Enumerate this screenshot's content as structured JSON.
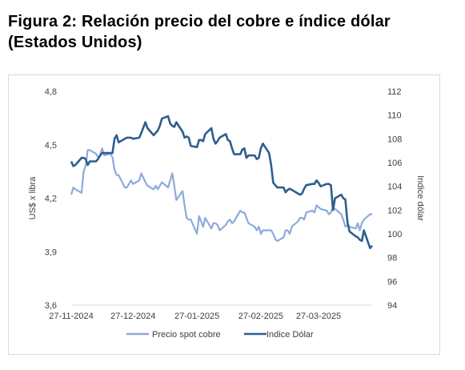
{
  "title": "Figura 2: Relación precio del cobre e índice dólar (Estados Unidos)",
  "chart_data": {
    "type": "line",
    "title": "Figura 2: Relación precio del cobre e índice dólar (Estados Unidos)",
    "x_tick_labels": [
      "27-11-2024",
      "27-12-2024",
      "27-01-2025",
      "27-02-2025",
      "27-03-2025"
    ],
    "x_range": [
      "2024-11-27",
      "2025-04-22"
    ],
    "ylabel_left": "US$ x libra",
    "ylabel_right": "Indice dólar",
    "ylim_left": [
      3.6,
      4.8
    ],
    "ylim_right": [
      94,
      112
    ],
    "yticks_left": [
      "3,6",
      "3,9",
      "4,2",
      "4,5",
      "4,8"
    ],
    "yticks_right": [
      "94",
      "96",
      "98",
      "100",
      "102",
      "104",
      "106",
      "108",
      "110",
      "112"
    ],
    "grid": false,
    "legend_position": "bottom",
    "series": [
      {
        "name": "Precio spot cobre",
        "axis": "left",
        "color": "#8eaadb",
        "points": [
          [
            "2024-11-27",
            4.22
          ],
          [
            "2024-11-28",
            4.26
          ],
          [
            "2024-11-29",
            4.25
          ],
          [
            "2024-12-02",
            4.23
          ],
          [
            "2024-12-03",
            4.35
          ],
          [
            "2024-12-04",
            4.38
          ],
          [
            "2024-12-05",
            4.47
          ],
          [
            "2024-12-06",
            4.47
          ],
          [
            "2024-12-09",
            4.45
          ],
          [
            "2024-12-10",
            4.43
          ],
          [
            "2024-12-11",
            4.44
          ],
          [
            "2024-12-12",
            4.48
          ],
          [
            "2024-12-13",
            4.44
          ],
          [
            "2024-12-16",
            4.45
          ],
          [
            "2024-12-17",
            4.43
          ],
          [
            "2024-12-18",
            4.36
          ],
          [
            "2024-12-19",
            4.33
          ],
          [
            "2024-12-20",
            4.33
          ],
          [
            "2024-12-23",
            4.26
          ],
          [
            "2024-12-24",
            4.26
          ],
          [
            "2024-12-26",
            4.3
          ],
          [
            "2024-12-27",
            4.28
          ],
          [
            "2024-12-30",
            4.3
          ],
          [
            "2024-12-31",
            4.34
          ],
          [
            "2025-01-02",
            4.29
          ],
          [
            "2025-01-03",
            4.27
          ],
          [
            "2025-01-06",
            4.25
          ],
          [
            "2025-01-07",
            4.27
          ],
          [
            "2025-01-08",
            4.25
          ],
          [
            "2025-01-09",
            4.27
          ],
          [
            "2025-01-10",
            4.29
          ],
          [
            "2025-01-13",
            4.26
          ],
          [
            "2025-01-14",
            4.3
          ],
          [
            "2025-01-15",
            4.34
          ],
          [
            "2025-01-16",
            4.27
          ],
          [
            "2025-01-17",
            4.19
          ],
          [
            "2025-01-20",
            4.24
          ],
          [
            "2025-01-21",
            4.16
          ],
          [
            "2025-01-22",
            4.09
          ],
          [
            "2025-01-23",
            4.08
          ],
          [
            "2025-01-24",
            4.08
          ],
          [
            "2025-01-27",
            4.0
          ],
          [
            "2025-01-28",
            4.1
          ],
          [
            "2025-01-29",
            4.07
          ],
          [
            "2025-01-30",
            4.04
          ],
          [
            "2025-01-31",
            4.09
          ],
          [
            "2025-02-03",
            4.03
          ],
          [
            "2025-02-04",
            4.06
          ],
          [
            "2025-02-05",
            4.06
          ],
          [
            "2025-02-06",
            4.05
          ],
          [
            "2025-02-07",
            4.02
          ],
          [
            "2025-02-10",
            4.05
          ],
          [
            "2025-02-11",
            4.07
          ],
          [
            "2025-02-12",
            4.08
          ],
          [
            "2025-02-13",
            4.06
          ],
          [
            "2025-02-14",
            4.07
          ],
          [
            "2025-02-17",
            4.13
          ],
          [
            "2025-02-18",
            4.12
          ],
          [
            "2025-02-19",
            4.12
          ],
          [
            "2025-02-20",
            4.09
          ],
          [
            "2025-02-21",
            4.06
          ],
          [
            "2025-02-24",
            4.04
          ],
          [
            "2025-02-25",
            4.02
          ],
          [
            "2025-02-26",
            4.04
          ],
          [
            "2025-02-27",
            4.0
          ],
          [
            "2025-02-28",
            4.02
          ],
          [
            "2025-03-03",
            4.02
          ],
          [
            "2025-03-04",
            4.02
          ],
          [
            "2025-03-05",
            4.0
          ],
          [
            "2025-03-06",
            3.97
          ],
          [
            "2025-03-07",
            3.96
          ],
          [
            "2025-03-10",
            3.98
          ],
          [
            "2025-03-11",
            4.02
          ],
          [
            "2025-03-12",
            4.02
          ],
          [
            "2025-03-13",
            4.0
          ],
          [
            "2025-03-14",
            4.04
          ],
          [
            "2025-03-17",
            4.07
          ],
          [
            "2025-03-18",
            4.09
          ],
          [
            "2025-03-19",
            4.09
          ],
          [
            "2025-03-20",
            4.08
          ],
          [
            "2025-03-21",
            4.12
          ],
          [
            "2025-03-24",
            4.13
          ],
          [
            "2025-03-25",
            4.12
          ],
          [
            "2025-03-26",
            4.16
          ],
          [
            "2025-03-27",
            4.15
          ],
          [
            "2025-03-28",
            4.14
          ],
          [
            "2025-03-31",
            4.13
          ],
          [
            "2025-04-01",
            4.11
          ],
          [
            "2025-04-02",
            4.12
          ],
          [
            "2025-04-03",
            4.15
          ],
          [
            "2025-04-04",
            4.14
          ],
          [
            "2025-04-07",
            4.11
          ],
          [
            "2025-04-08",
            4.08
          ],
          [
            "2025-04-09",
            4.04
          ],
          [
            "2025-04-10",
            4.05
          ],
          [
            "2025-04-11",
            4.04
          ],
          [
            "2025-04-14",
            4.03
          ],
          [
            "2025-04-15",
            4.06
          ],
          [
            "2025-04-16",
            4.02
          ],
          [
            "2025-04-17",
            4.06
          ],
          [
            "2025-04-18",
            4.08
          ],
          [
            "2025-04-21",
            4.11
          ],
          [
            "2025-04-22",
            4.11
          ]
        ]
      },
      {
        "name": "Indice Dólar",
        "axis": "right",
        "color": "#2e5e8e",
        "points": [
          [
            "2024-11-27",
            106.1
          ],
          [
            "2024-11-28",
            105.7
          ],
          [
            "2024-11-29",
            105.8
          ],
          [
            "2024-12-02",
            106.4
          ],
          [
            "2024-12-03",
            106.4
          ],
          [
            "2024-12-04",
            106.3
          ],
          [
            "2024-12-05",
            105.8
          ],
          [
            "2024-12-06",
            106.1
          ],
          [
            "2024-12-09",
            106.1
          ],
          [
            "2024-12-10",
            106.3
          ],
          [
            "2024-12-11",
            106.6
          ],
          [
            "2024-12-12",
            106.8
          ],
          [
            "2024-12-13",
            106.8
          ],
          [
            "2024-12-16",
            106.8
          ],
          [
            "2024-12-17",
            106.8
          ],
          [
            "2024-12-18",
            108.0
          ],
          [
            "2024-12-19",
            108.3
          ],
          [
            "2024-12-20",
            107.7
          ],
          [
            "2024-12-23",
            108.0
          ],
          [
            "2024-12-24",
            108.1
          ],
          [
            "2024-12-26",
            108.1
          ],
          [
            "2024-12-27",
            108.0
          ],
          [
            "2024-12-30",
            108.1
          ],
          [
            "2024-12-31",
            108.5
          ],
          [
            "2025-01-02",
            109.4
          ],
          [
            "2025-01-03",
            108.9
          ],
          [
            "2025-01-06",
            108.3
          ],
          [
            "2025-01-07",
            108.5
          ],
          [
            "2025-01-08",
            108.7
          ],
          [
            "2025-01-09",
            109.1
          ],
          [
            "2025-01-10",
            109.7
          ],
          [
            "2025-01-13",
            109.9
          ],
          [
            "2025-01-14",
            109.3
          ],
          [
            "2025-01-15",
            109.1
          ],
          [
            "2025-01-16",
            109.0
          ],
          [
            "2025-01-17",
            109.4
          ],
          [
            "2025-01-20",
            108.6
          ],
          [
            "2025-01-21",
            108.1
          ],
          [
            "2025-01-22",
            108.2
          ],
          [
            "2025-01-23",
            108.1
          ],
          [
            "2025-01-24",
            107.4
          ],
          [
            "2025-01-27",
            107.3
          ],
          [
            "2025-01-28",
            107.9
          ],
          [
            "2025-01-29",
            107.9
          ],
          [
            "2025-01-30",
            107.8
          ],
          [
            "2025-01-31",
            108.4
          ],
          [
            "2025-02-03",
            108.9
          ],
          [
            "2025-02-04",
            108.0
          ],
          [
            "2025-02-05",
            107.6
          ],
          [
            "2025-02-06",
            107.8
          ],
          [
            "2025-02-07",
            108.1
          ],
          [
            "2025-02-10",
            108.4
          ],
          [
            "2025-02-11",
            107.9
          ],
          [
            "2025-02-12",
            107.8
          ],
          [
            "2025-02-13",
            107.2
          ],
          [
            "2025-02-14",
            106.7
          ],
          [
            "2025-02-17",
            106.7
          ],
          [
            "2025-02-18",
            107.1
          ],
          [
            "2025-02-19",
            107.2
          ],
          [
            "2025-02-20",
            106.4
          ],
          [
            "2025-02-21",
            106.6
          ],
          [
            "2025-02-24",
            106.6
          ],
          [
            "2025-02-25",
            106.3
          ],
          [
            "2025-02-26",
            106.4
          ],
          [
            "2025-02-27",
            107.2
          ],
          [
            "2025-02-28",
            107.6
          ],
          [
            "2025-03-03",
            106.8
          ],
          [
            "2025-03-04",
            105.8
          ],
          [
            "2025-03-05",
            104.3
          ],
          [
            "2025-03-06",
            104.1
          ],
          [
            "2025-03-07",
            103.9
          ],
          [
            "2025-03-10",
            103.9
          ],
          [
            "2025-03-11",
            103.5
          ],
          [
            "2025-03-12",
            103.7
          ],
          [
            "2025-03-13",
            103.8
          ],
          [
            "2025-03-14",
            103.7
          ],
          [
            "2025-03-17",
            103.4
          ],
          [
            "2025-03-18",
            103.3
          ],
          [
            "2025-03-19",
            103.4
          ],
          [
            "2025-03-20",
            103.8
          ],
          [
            "2025-03-21",
            104.1
          ],
          [
            "2025-03-24",
            104.2
          ],
          [
            "2025-03-25",
            104.2
          ],
          [
            "2025-03-26",
            104.5
          ],
          [
            "2025-03-27",
            104.3
          ],
          [
            "2025-03-28",
            104.0
          ],
          [
            "2025-03-31",
            104.2
          ],
          [
            "2025-04-01",
            104.2
          ],
          [
            "2025-04-02",
            104.1
          ],
          [
            "2025-04-03",
            102.0
          ],
          [
            "2025-04-04",
            103.0
          ],
          [
            "2025-04-07",
            103.3
          ],
          [
            "2025-04-08",
            103.0
          ],
          [
            "2025-04-09",
            102.9
          ],
          [
            "2025-04-10",
            101.0
          ],
          [
            "2025-04-11",
            100.2
          ],
          [
            "2025-04-14",
            99.8
          ],
          [
            "2025-04-15",
            99.7
          ],
          [
            "2025-04-16",
            99.5
          ],
          [
            "2025-04-17",
            99.4
          ],
          [
            "2025-04-18",
            100.3
          ],
          [
            "2025-04-21",
            98.8
          ],
          [
            "2025-04-22",
            99.0
          ]
        ]
      }
    ]
  }
}
